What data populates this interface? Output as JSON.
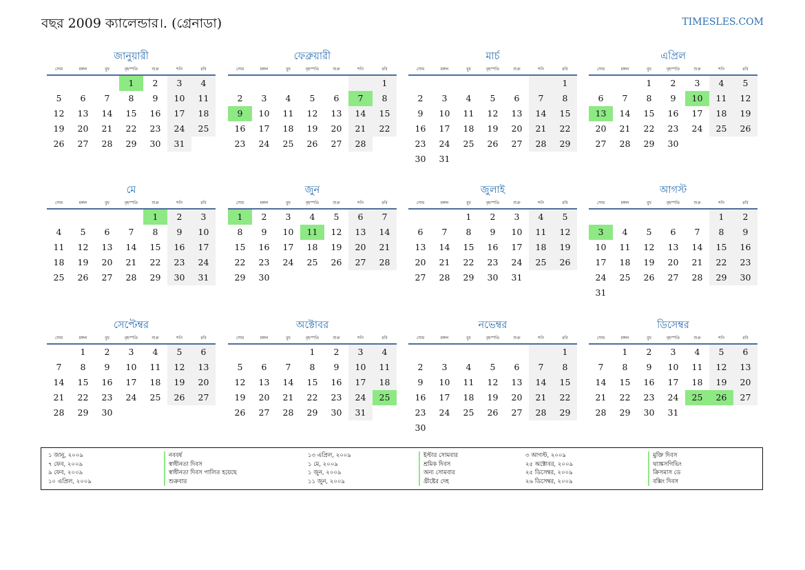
{
  "header": {
    "title": "বছর 2009 ক্যালেন্ডার।. (গ্রেনাডা)",
    "site": "TIMESLES.COM"
  },
  "weekdays": [
    "সোম",
    "মঙ্গল",
    "বুধ",
    "বৃহস্পতি",
    "শুক্র",
    "শনি",
    "রবি"
  ],
  "months": [
    {
      "name": "জানুয়ারী",
      "offset": 3,
      "days": 31,
      "holidays": [
        1
      ]
    },
    {
      "name": "ফেব্রুয়ারী",
      "offset": 6,
      "days": 28,
      "holidays": [
        7,
        9
      ]
    },
    {
      "name": "মার্চ",
      "offset": 6,
      "days": 31,
      "holidays": []
    },
    {
      "name": "এপ্রিল",
      "offset": 2,
      "days": 30,
      "holidays": [
        10,
        13
      ]
    },
    {
      "name": "মে",
      "offset": 4,
      "days": 31,
      "holidays": [
        1
      ]
    },
    {
      "name": "জুন",
      "offset": 0,
      "days": 30,
      "holidays": [
        1,
        11
      ]
    },
    {
      "name": "জুলাই",
      "offset": 2,
      "days": 31,
      "holidays": []
    },
    {
      "name": "আগস্ট",
      "offset": 5,
      "days": 31,
      "holidays": [
        3
      ]
    },
    {
      "name": "সেপ্টেম্বর",
      "offset": 1,
      "days": 30,
      "holidays": []
    },
    {
      "name": "অক্টোবর",
      "offset": 3,
      "days": 31,
      "holidays": [
        25
      ]
    },
    {
      "name": "নভেম্বর",
      "offset": 6,
      "days": 30,
      "holidays": []
    },
    {
      "name": "ডিসেম্বর",
      "offset": 1,
      "days": 31,
      "holidays": [
        25,
        26
      ]
    }
  ],
  "holidays_list": [
    {
      "date": "১ জানু, ২০০৯",
      "name": "নববর্ষ"
    },
    {
      "date": "৭ ফেব, ২০০৯",
      "name": "স্বাধীনতা দিবস"
    },
    {
      "date": "৯ ফেব, ২০০৯",
      "name": "স্বাধীনতা দিবস পালিত হয়েছে"
    },
    {
      "date": "১০ এপ্রিল, ২০০৯",
      "name": "শুক্রবার"
    },
    {
      "date": "১৩ এপ্রিল, ২০০৯",
      "name": "ইস্টার সোমবার"
    },
    {
      "date": "১ মে, ২০০৯",
      "name": "শ্রমিক দিবস"
    },
    {
      "date": "১ জুন, ২০০৯",
      "name": "অন্য সোমবার"
    },
    {
      "date": "১১ জুন, ২০০৯",
      "name": "খ্রীষ্টের দেহ"
    },
    {
      "date": "৩ আগস্ট, ২০০৯",
      "name": "মুক্তি দিবস"
    },
    {
      "date": "২৫ অক্টোবর, ২০০৯",
      "name": "থ্যাঙ্কসগিভিং"
    },
    {
      "date": "২৫ ডিসেম্বর, ২০০৯",
      "name": "ক্রিসমাস ডে"
    },
    {
      "date": "২৬ ডিসেম্বর, ২০০৯",
      "name": "বক্সিং দিবস"
    }
  ]
}
